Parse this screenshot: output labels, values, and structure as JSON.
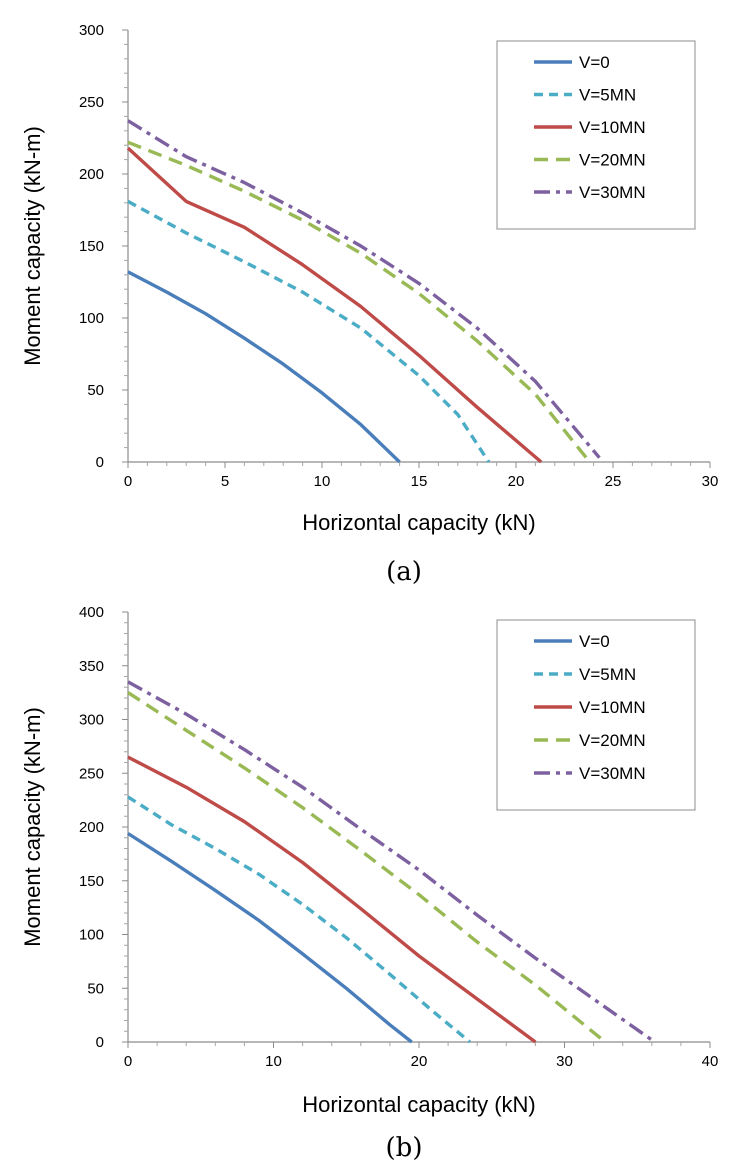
{
  "series_styles": {
    "V=0": {
      "color": "#4a7ebb",
      "dash": "solid"
    },
    "V=5MN": {
      "color": "#4bacc6",
      "dash": "dash"
    },
    "V=10MN": {
      "color": "#be4b48",
      "dash": "solid"
    },
    "V=20MN": {
      "color": "#98b954",
      "dash": "longdash"
    },
    "V=30MN": {
      "color": "#7d60a0",
      "dash": "dashdot"
    }
  },
  "chart_data": [
    {
      "type": "line",
      "caption": "(a)",
      "xlabel": "Horizontal capacity (kN)",
      "ylabel": "Moment capacity (kN-m)",
      "xlim": [
        0,
        30
      ],
      "ylim": [
        0,
        300
      ],
      "xticks": [
        0,
        5,
        10,
        15,
        20,
        25,
        30
      ],
      "yticks": [
        0,
        50,
        100,
        150,
        200,
        250,
        300
      ],
      "grid": false,
      "legend_position": "top-right",
      "series": [
        {
          "name": "V=0",
          "x": [
            0,
            2,
            4,
            6,
            8,
            10,
            12,
            14
          ],
          "y": [
            132,
            118,
            103,
            86,
            68,
            48,
            26,
            0
          ]
        },
        {
          "name": "V=5MN",
          "x": [
            0,
            3,
            6,
            9,
            12,
            15,
            17,
            18.6
          ],
          "y": [
            181,
            159,
            139,
            118,
            93,
            60,
            33,
            0
          ]
        },
        {
          "name": "V=10MN",
          "x": [
            0,
            3,
            6,
            9,
            12,
            15,
            18,
            21.3
          ],
          "y": [
            218,
            181,
            163,
            137,
            108,
            74,
            38,
            0
          ]
        },
        {
          "name": "V=20MN",
          "x": [
            0,
            3,
            6,
            9,
            12,
            15,
            18,
            21,
            23.8
          ],
          "y": [
            222,
            206,
            188,
            168,
            145,
            117,
            84,
            47,
            0
          ]
        },
        {
          "name": "V=30MN",
          "x": [
            0,
            3,
            6,
            9,
            12,
            15,
            18,
            21,
            24.3
          ],
          "y": [
            237,
            212,
            194,
            173,
            150,
            124,
            93,
            56,
            3
          ]
        }
      ]
    },
    {
      "type": "line",
      "caption": "(b)",
      "xlabel": "Horizontal capacity (kN)",
      "ylabel": "Moment capacity (kN-m)",
      "xlim": [
        0,
        40
      ],
      "ylim": [
        0,
        400
      ],
      "xticks": [
        0,
        10,
        20,
        30,
        40
      ],
      "yticks": [
        0,
        50,
        100,
        150,
        200,
        250,
        300,
        350,
        400
      ],
      "grid": false,
      "legend_position": "top-right",
      "series": [
        {
          "name": "V=0",
          "x": [
            0,
            3,
            6,
            9,
            12,
            15,
            18,
            19.5
          ],
          "y": [
            194,
            168,
            141,
            113,
            82,
            50,
            16,
            0
          ]
        },
        {
          "name": "V=5MN",
          "x": [
            0,
            3,
            6,
            9,
            12,
            15,
            18,
            21,
            23.5
          ],
          "y": [
            228,
            202,
            180,
            156,
            128,
            97,
            63,
            28,
            0
          ]
        },
        {
          "name": "V=10MN",
          "x": [
            0,
            4,
            8,
            12,
            16,
            20,
            24,
            28
          ],
          "y": [
            265,
            237,
            205,
            167,
            124,
            80,
            40,
            0
          ]
        },
        {
          "name": "V=20MN",
          "x": [
            0,
            4,
            8,
            12,
            16,
            20,
            24,
            28,
            32.8
          ],
          "y": [
            325,
            290,
            255,
            218,
            178,
            137,
            93,
            53,
            0
          ]
        },
        {
          "name": "V=30MN",
          "x": [
            0,
            4,
            8,
            12,
            16,
            20,
            24,
            28,
            32,
            36.2
          ],
          "y": [
            335,
            305,
            272,
            237,
            198,
            160,
            118,
            78,
            40,
            0
          ]
        }
      ]
    }
  ]
}
